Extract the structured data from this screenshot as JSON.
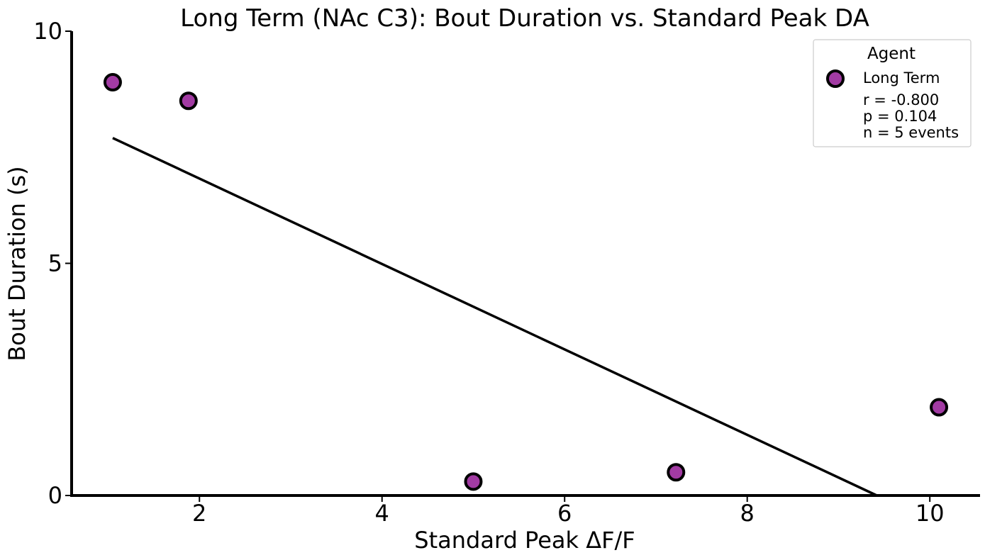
{
  "chart_data": {
    "type": "scatter",
    "title": "Long Term (NAc C3): Bout Duration vs. Standard Peak DA",
    "xlabel": "Standard Peak ΔF/F",
    "ylabel": "Bout Duration (s)",
    "xlim": [
      0.6,
      10.55
    ],
    "ylim": [
      0,
      10
    ],
    "xticks": [
      2,
      4,
      6,
      8,
      10
    ],
    "yticks": [
      0,
      5,
      10
    ],
    "grid": false,
    "legend": {
      "title": "Agent",
      "position": "top-right",
      "entries": [
        "Long Term"
      ],
      "stats": [
        "r = -0.800",
        "p = 0.104",
        "n = 5 events"
      ]
    },
    "series": [
      {
        "name": "Long Term",
        "color": "#a23ba3",
        "edge_color": "#000000",
        "points": [
          {
            "x": 1.05,
            "y": 8.9
          },
          {
            "x": 1.88,
            "y": 8.5
          },
          {
            "x": 5.0,
            "y": 0.3
          },
          {
            "x": 7.22,
            "y": 0.5
          },
          {
            "x": 10.1,
            "y": 1.9
          }
        ]
      }
    ],
    "regression_line": {
      "x": [
        1.05,
        9.42
      ],
      "y": [
        7.7,
        0.0
      ],
      "color": "#000000"
    }
  }
}
